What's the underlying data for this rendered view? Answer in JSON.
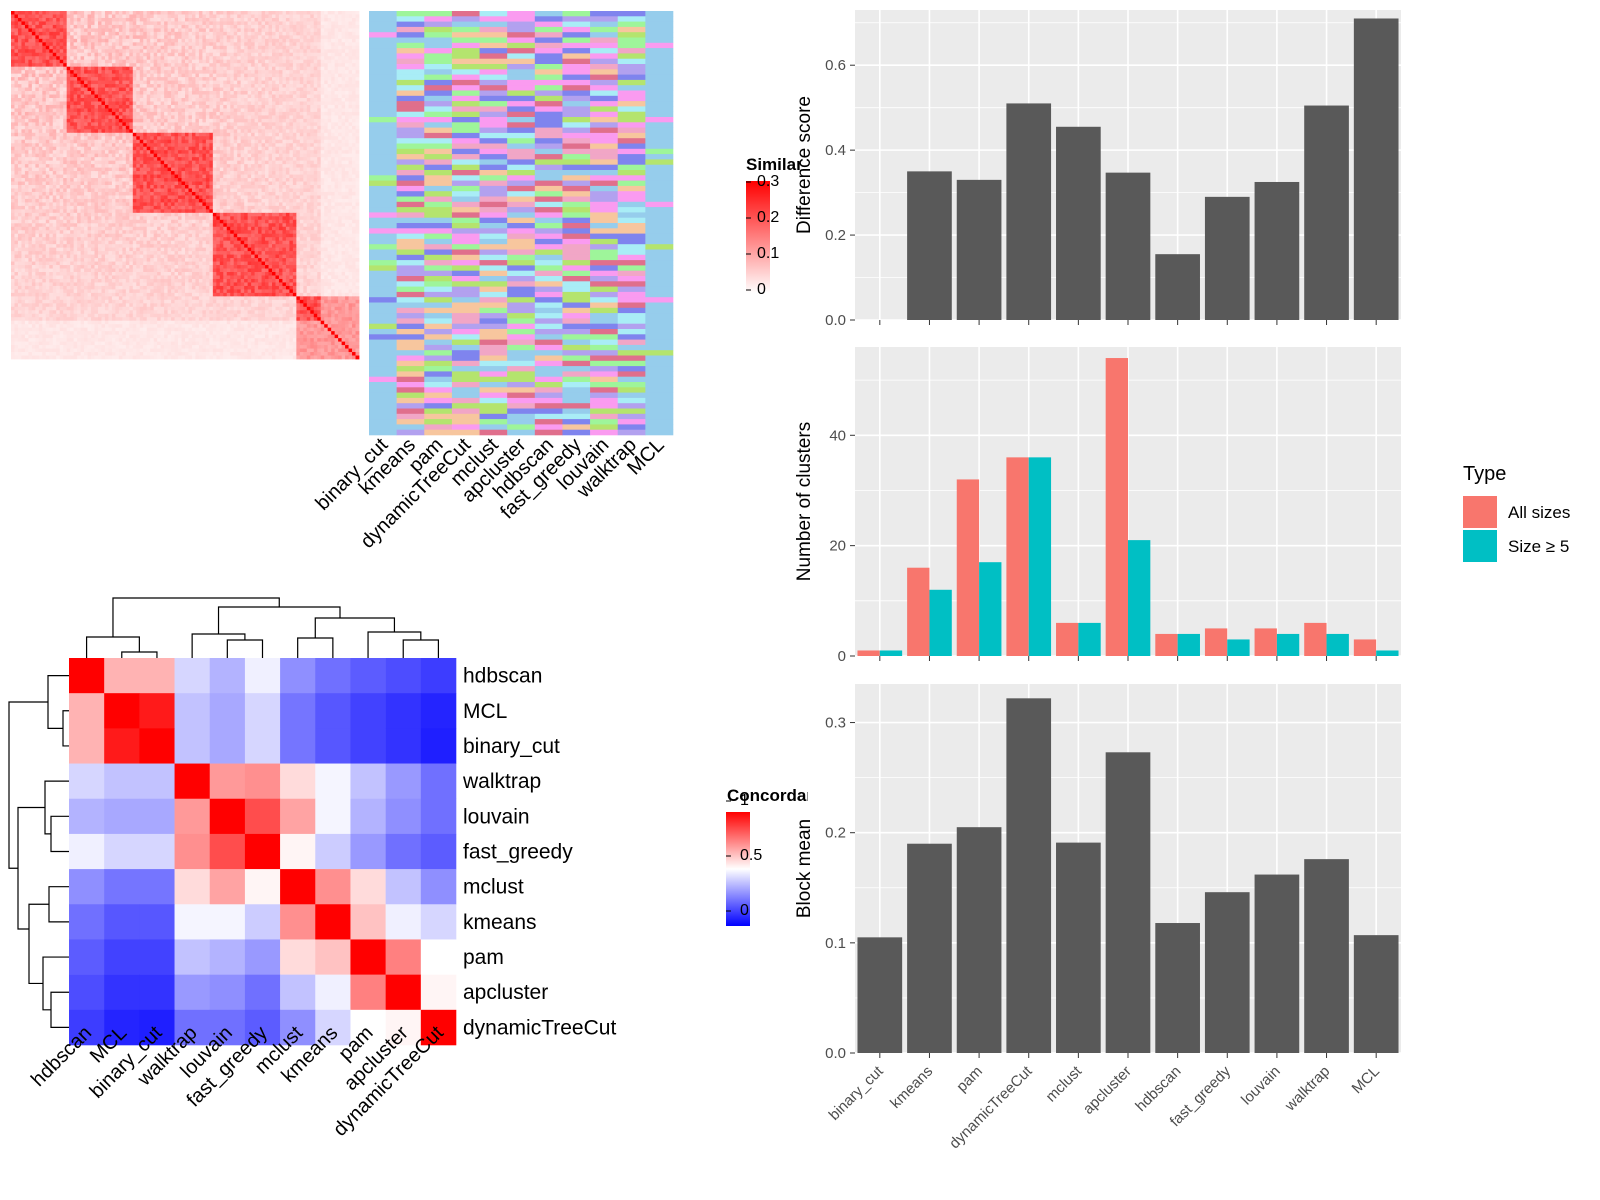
{
  "colors": {
    "panel_bg": "#ebebeb",
    "grid": "#ffffff",
    "bar_dark": "#595959",
    "all_sizes": "#f8766d",
    "size_ge5": "#00bfc4",
    "sim_high": "#ff0000",
    "sim_low": "#ffffff",
    "conc_high": "#ff0000",
    "conc_mid": "#ffffff",
    "conc_low": "#0000ff",
    "membership_base": "#96cdec",
    "membership_palette": [
      "#96cdec",
      "#9ef59a",
      "#fa9bf0",
      "#7f84ee",
      "#b4e46e",
      "#f7c69e",
      "#f1a6c6",
      "#a9edf6",
      "#b2a1ef",
      "#e06f8c"
    ]
  },
  "similarity_heatmap": {
    "legend_title": "Similarity",
    "legend_ticks": [
      "0.3",
      "0.2",
      "0.1",
      "0"
    ],
    "methods": [
      "binary_cut",
      "kmeans",
      "pam",
      "dynamicTreeCut",
      "mclust",
      "apcluster",
      "hdbscan",
      "fast_greedy",
      "louvain",
      "walktrap",
      "MCL"
    ]
  },
  "concordance_heatmap": {
    "legend_title": "Concordance",
    "legend_ticks": [
      "1",
      "0.5",
      "0"
    ],
    "order": [
      "hdbscan",
      "MCL",
      "binary_cut",
      "walktrap",
      "louvain",
      "fast_greedy",
      "mclust",
      "kmeans",
      "pam",
      "apcluster",
      "dynamicTreeCut"
    ],
    "matrix": [
      [
        1.0,
        0.65,
        0.65,
        0.42,
        0.35,
        0.47,
        0.28,
        0.22,
        0.18,
        0.15,
        0.12
      ],
      [
        0.65,
        1.0,
        0.95,
        0.38,
        0.33,
        0.42,
        0.23,
        0.17,
        0.13,
        0.1,
        0.07
      ],
      [
        0.65,
        0.95,
        1.0,
        0.38,
        0.33,
        0.42,
        0.23,
        0.17,
        0.13,
        0.1,
        0.06
      ],
      [
        0.42,
        0.38,
        0.38,
        1.0,
        0.7,
        0.72,
        0.57,
        0.48,
        0.38,
        0.3,
        0.22
      ],
      [
        0.35,
        0.33,
        0.33,
        0.7,
        1.0,
        0.85,
        0.68,
        0.48,
        0.35,
        0.28,
        0.22
      ],
      [
        0.47,
        0.42,
        0.42,
        0.72,
        0.85,
        1.0,
        0.52,
        0.4,
        0.3,
        0.22,
        0.18
      ],
      [
        0.28,
        0.23,
        0.23,
        0.57,
        0.68,
        0.52,
        1.0,
        0.72,
        0.57,
        0.38,
        0.28
      ],
      [
        0.22,
        0.17,
        0.17,
        0.48,
        0.48,
        0.4,
        0.72,
        1.0,
        0.62,
        0.47,
        0.42
      ],
      [
        0.18,
        0.13,
        0.13,
        0.38,
        0.35,
        0.3,
        0.57,
        0.62,
        1.0,
        0.75,
        0.5
      ],
      [
        0.15,
        0.1,
        0.1,
        0.3,
        0.28,
        0.22,
        0.38,
        0.47,
        0.75,
        1.0,
        0.52
      ],
      [
        0.12,
        0.07,
        0.06,
        0.22,
        0.22,
        0.18,
        0.28,
        0.42,
        0.5,
        0.52,
        1.0
      ]
    ]
  },
  "chart_data": [
    {
      "type": "bar",
      "categories": [
        "binary_cut",
        "kmeans",
        "pam",
        "dynamicTreeCut",
        "mclust",
        "apcluster",
        "hdbscan",
        "fast_greedy",
        "louvain",
        "walktrap",
        "MCL"
      ],
      "values": [
        0.0,
        0.35,
        0.33,
        0.51,
        0.455,
        0.347,
        0.155,
        0.29,
        0.325,
        0.505,
        0.71
      ],
      "xlabel": "",
      "ylabel": "Difference score",
      "ylim": [
        0,
        0.73
      ],
      "yticks": [
        "0.0",
        "0.2",
        "0.4",
        "0.6"
      ]
    },
    {
      "type": "bar",
      "categories": [
        "binary_cut",
        "kmeans",
        "pam",
        "dynamicTreeCut",
        "mclust",
        "apcluster",
        "hdbscan",
        "fast_greedy",
        "louvain",
        "walktrap",
        "MCL"
      ],
      "series": [
        {
          "name": "All sizes",
          "values": [
            1,
            16,
            32,
            36,
            6,
            54,
            4,
            5,
            5,
            6,
            3
          ]
        },
        {
          "name": "Size ≥ 5",
          "values": [
            1,
            12,
            17,
            36,
            6,
            21,
            4,
            3,
            4,
            4,
            1
          ]
        }
      ],
      "xlabel": "",
      "ylabel": "Number of clusters",
      "ylim": [
        0,
        56
      ],
      "yticks": [
        "0",
        "20",
        "40"
      ],
      "legend": {
        "title": "Type",
        "position": "right"
      }
    },
    {
      "type": "bar",
      "categories": [
        "binary_cut",
        "kmeans",
        "pam",
        "dynamicTreeCut",
        "mclust",
        "apcluster",
        "hdbscan",
        "fast_greedy",
        "louvain",
        "walktrap",
        "MCL"
      ],
      "values": [
        0.105,
        0.19,
        0.205,
        0.322,
        0.191,
        0.273,
        0.118,
        0.146,
        0.162,
        0.176,
        0.107
      ],
      "xlabel": "",
      "ylabel": "Block mean",
      "ylim": [
        0,
        0.335
      ],
      "yticks": [
        "0.0",
        "0.1",
        "0.2",
        "0.3"
      ]
    }
  ]
}
